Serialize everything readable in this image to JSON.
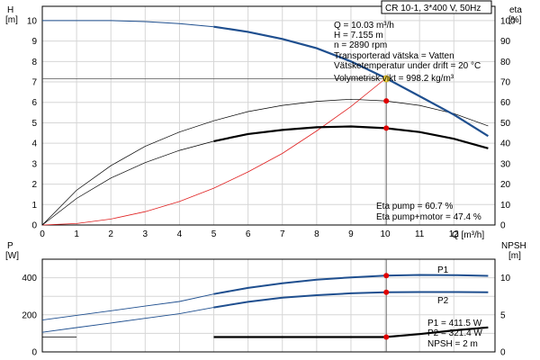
{
  "chart_data": [
    {
      "type": "line",
      "title": "CR 10-1, 3*400 V, 50Hz",
      "y_left": {
        "label": "H",
        "unit": "[m]",
        "lim": [
          0,
          10.7
        ],
        "ticks": [
          0,
          1,
          2,
          3,
          4,
          5,
          6,
          7,
          8,
          9,
          10
        ]
      },
      "y_right": {
        "label": "eta",
        "unit": "[%]",
        "lim": [
          0,
          107
        ],
        "ticks": [
          0,
          10,
          20,
          30,
          40,
          50,
          60,
          70,
          80,
          90,
          100
        ]
      },
      "x": {
        "label": "Q [m³/h]",
        "lim": [
          0,
          13.2
        ],
        "ticks": [
          0,
          1,
          2,
          3,
          4,
          5,
          6,
          7,
          8,
          9,
          10,
          11,
          12
        ]
      },
      "series": [
        {
          "key": "head",
          "color": "#1f4f8f",
          "x": [
            0,
            1,
            2,
            3,
            4,
            5,
            6,
            7,
            8,
            9,
            10,
            11,
            12,
            13
          ],
          "y": [
            10.0,
            10.0,
            10.0,
            9.95,
            9.85,
            9.7,
            9.45,
            9.1,
            8.65,
            8.0,
            7.2,
            6.3,
            5.4,
            4.35
          ]
        },
        {
          "key": "eta_pump",
          "color": "#000000",
          "x": [
            0,
            1,
            2,
            3,
            4,
            5,
            6,
            7,
            8,
            9,
            10,
            11,
            12,
            13
          ],
          "y": [
            0,
            17,
            29,
            38.5,
            45.5,
            51,
            55.5,
            58.5,
            60.5,
            61.5,
            60.7,
            58.5,
            54.5,
            48.5
          ]
        },
        {
          "key": "eta_total",
          "color": "#000000",
          "x": [
            0,
            1,
            2,
            3,
            4,
            5,
            6,
            7,
            8,
            9,
            10,
            11,
            12,
            13
          ],
          "y": [
            0,
            13,
            23,
            30.5,
            36.5,
            41,
            44.5,
            46.5,
            47.8,
            48.2,
            47.4,
            45.5,
            42.2,
            37.5
          ]
        },
        {
          "key": "system",
          "color": "#e02020",
          "x": [
            0,
            1,
            2,
            3,
            4,
            5,
            6,
            7,
            8,
            9,
            10
          ],
          "y": [
            0,
            0.07,
            0.29,
            0.65,
            1.15,
            1.8,
            2.6,
            3.5,
            4.6,
            5.8,
            7.155
          ]
        }
      ],
      "duty_point": {
        "q": 10.03,
        "h": 7.155,
        "eta_pump": 60.7,
        "eta_total": 47.4
      },
      "info_lines": [
        "Q = 10.03 m³/h",
        "H = 7.155 m",
        "n = 2890 rpm",
        "Transporterad vätska = Vatten",
        "Vätsketemperatur under drift = 20 °C",
        "Volymetrisk vikt = 998.2 kg/m³"
      ],
      "eta_labels": [
        "Eta pump = 60.7 %",
        "Eta pump+motor = 47.4 %"
      ]
    },
    {
      "type": "line",
      "y_left": {
        "label": "P",
        "unit": "[W]",
        "lim": [
          0,
          500
        ],
        "ticks": [
          0,
          200,
          400
        ]
      },
      "y_right": {
        "label": "NPSH",
        "unit": "[m]",
        "lim": [
          0,
          12.5
        ],
        "ticks": [
          0,
          5,
          10
        ]
      },
      "x": {
        "lim": [
          0,
          13.2
        ]
      },
      "series": [
        {
          "name": "P1",
          "axis": "left",
          "color": "#1f4f8f",
          "x": [
            0,
            1,
            2,
            3,
            4,
            5,
            6,
            7,
            8,
            9,
            10,
            11,
            12,
            13
          ],
          "y": [
            172,
            197,
            222,
            247,
            272,
            312,
            345,
            370,
            390,
            402,
            411.5,
            415,
            414,
            410
          ]
        },
        {
          "name": "P2",
          "axis": "left",
          "color": "#1f4f8f",
          "x": [
            0,
            1,
            2,
            3,
            4,
            5,
            6,
            7,
            8,
            9,
            10,
            11,
            12,
            13
          ],
          "y": [
            106,
            131,
            156,
            181,
            206,
            240,
            270,
            292,
            306,
            316,
            321.4,
            323,
            323,
            322
          ]
        },
        {
          "key": "npsh",
          "axis": "right",
          "color": "#000000",
          "x": [
            0,
            1,
            2,
            3,
            4,
            5,
            6,
            7,
            8,
            9,
            10,
            11,
            12,
            13
          ],
          "y": [
            2,
            2,
            2,
            2,
            2,
            2,
            2,
            2,
            2,
            2,
            2,
            2.4,
            2.9,
            3.3
          ]
        }
      ],
      "duty_point": {
        "q": 10.03,
        "p1": 411.5,
        "p2": 321.4,
        "npsh": 2
      },
      "info_lines": [
        "P1 = 411.5 W",
        "P2 = 321.4 W",
        "NPSH = 2 m"
      ]
    }
  ]
}
